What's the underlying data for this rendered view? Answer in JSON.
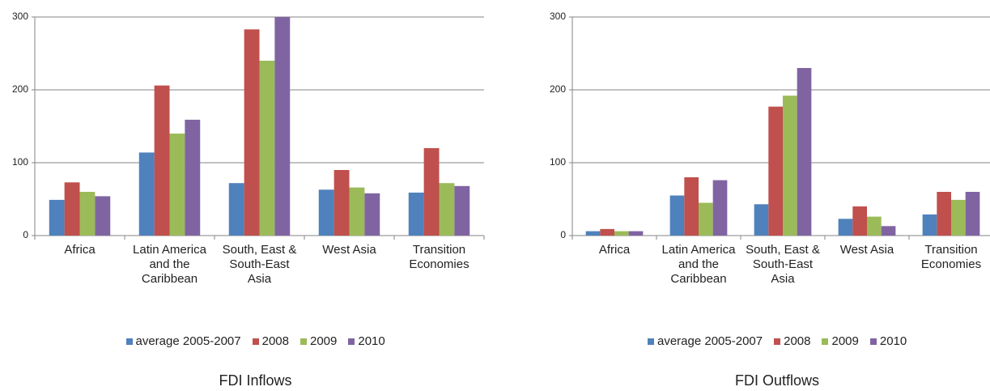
{
  "chart_data": [
    {
      "type": "bar",
      "title": "FDI Inflows",
      "categories": [
        "Africa",
        "Latin America and the Caribbean",
        "South, East & South-East Asia",
        "West Asia",
        "Transition Economies"
      ],
      "series": [
        {
          "name": "average 2005-2007",
          "color": "#4f81bd",
          "values": [
            49,
            114,
            72,
            63,
            59
          ]
        },
        {
          "name": "2008",
          "color": "#c0504d",
          "values": [
            73,
            206,
            283,
            90,
            120
          ]
        },
        {
          "name": "2009",
          "color": "#9bbb59",
          "values": [
            60,
            140,
            240,
            66,
            72
          ]
        },
        {
          "name": "2010",
          "color": "#8064a2",
          "values": [
            54,
            159,
            300,
            58,
            68
          ]
        }
      ],
      "ylim": [
        0,
        300
      ],
      "yticks": [
        0,
        100,
        200,
        300
      ],
      "grid": true,
      "legend": "bottom"
    },
    {
      "type": "bar",
      "title": "FDI Outflows",
      "categories": [
        "Africa",
        "Latin America and the Caribbean",
        "South, East & South-East Asia",
        "West Asia",
        "Transition Economies"
      ],
      "series": [
        {
          "name": "average 2005-2007",
          "color": "#4f81bd",
          "values": [
            6,
            55,
            43,
            23,
            29
          ]
        },
        {
          "name": "2008",
          "color": "#c0504d",
          "values": [
            9,
            80,
            177,
            40,
            60
          ]
        },
        {
          "name": "2009",
          "color": "#9bbb59",
          "values": [
            6,
            45,
            192,
            26,
            49
          ]
        },
        {
          "name": "2010",
          "color": "#8064a2",
          "values": [
            6,
            76,
            230,
            13,
            60
          ]
        }
      ],
      "ylim": [
        0,
        300
      ],
      "yticks": [
        0,
        100,
        200,
        300
      ],
      "grid": true,
      "legend": "bottom"
    }
  ]
}
